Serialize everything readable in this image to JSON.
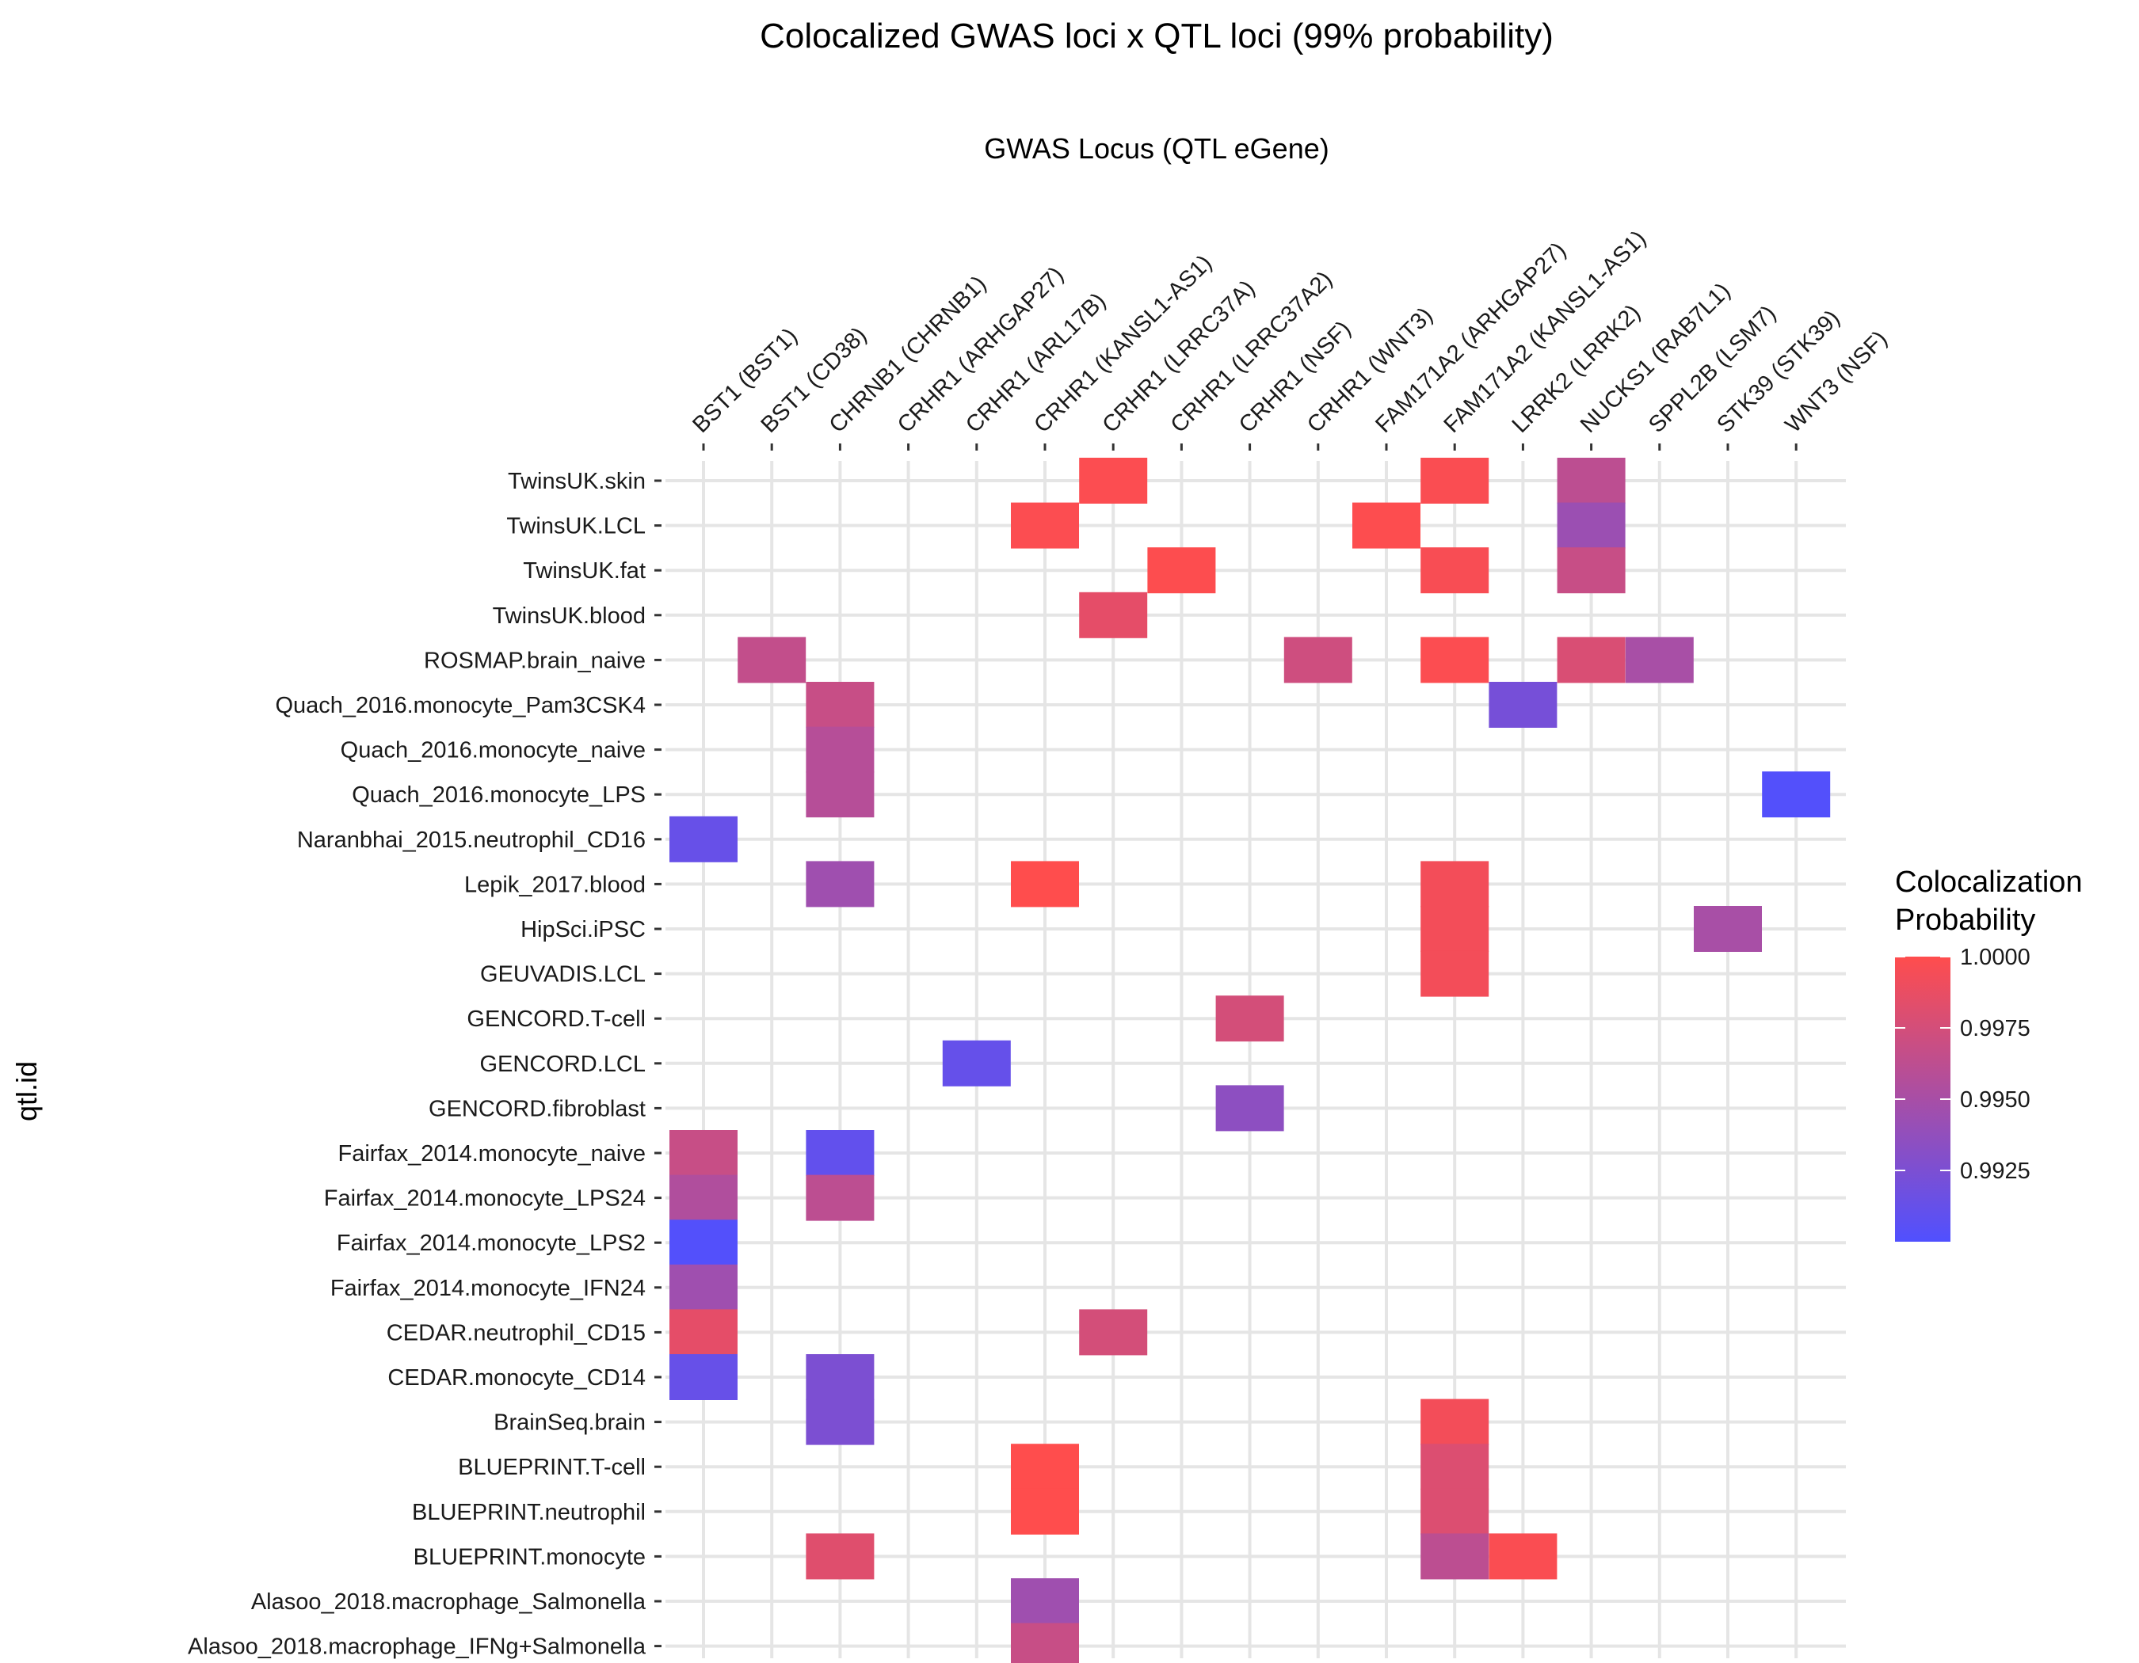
{
  "chart_data": {
    "type": "heatmap",
    "title": "Colocalized GWAS loci x QTL loci (99% probability)",
    "xlabel": "GWAS Locus (QTL eGene)",
    "ylabel": "qtl.id",
    "x_axis_position": "top",
    "x": [
      "BST1 (BST1)",
      "BST1 (CD38)",
      "CHRNB1 (CHRNB1)",
      "CRHR1 (ARHGAP27)",
      "CRHR1 (ARL17B)",
      "CRHR1 (KANSL1-AS1)",
      "CRHR1 (LRRC37A)",
      "CRHR1 (LRRC37A2)",
      "CRHR1 (NSF)",
      "CRHR1 (WNT3)",
      "FAM171A2 (ARHGAP27)",
      "FAM171A2 (KANSL1-AS1)",
      "LRRK2 (LRRK2)",
      "NUCKS1 (RAB7L1)",
      "SPPL2B (LSM7)",
      "STK39 (STK39)",
      "WNT3 (NSF)"
    ],
    "y": [
      "TwinsUK.skin",
      "TwinsUK.LCL",
      "TwinsUK.fat",
      "TwinsUK.blood",
      "ROSMAP.brain_naive",
      "Quach_2016.monocyte_Pam3CSK4",
      "Quach_2016.monocyte_naive",
      "Quach_2016.monocyte_LPS",
      "Naranbhai_2015.neutrophil_CD16",
      "Lepik_2017.blood",
      "HipSci.iPSC",
      "GEUVADIS.LCL",
      "GENCORD.T-cell",
      "GENCORD.LCL",
      "GENCORD.fibroblast",
      "Fairfax_2014.monocyte_naive",
      "Fairfax_2014.monocyte_LPS24",
      "Fairfax_2014.monocyte_LPS2",
      "Fairfax_2014.monocyte_IFN24",
      "CEDAR.neutrophil_CD15",
      "CEDAR.monocyte_CD14",
      "BrainSeq.brain",
      "BLUEPRINT.T-cell",
      "BLUEPRINT.neutrophil",
      "BLUEPRINT.monocyte",
      "Alasoo_2018.macrophage_Salmonella",
      "Alasoo_2018.macrophage_IFNg+Salmonella"
    ],
    "cells": [
      {
        "x": "CRHR1 (LRRC37A)",
        "y": "TwinsUK.skin",
        "value": 0.9998
      },
      {
        "x": "FAM171A2 (KANSL1-AS1)",
        "y": "TwinsUK.skin",
        "value": 0.9997
      },
      {
        "x": "NUCKS1 (RAB7L1)",
        "y": "TwinsUK.skin",
        "value": 0.9962
      },
      {
        "x": "CRHR1 (KANSL1-AS1)",
        "y": "TwinsUK.LCL",
        "value": 0.9998
      },
      {
        "x": "FAM171A2 (ARHGAP27)",
        "y": "TwinsUK.LCL",
        "value": 0.9999
      },
      {
        "x": "NUCKS1 (RAB7L1)",
        "y": "TwinsUK.LCL",
        "value": 0.9943
      },
      {
        "x": "CRHR1 (LRRC37A2)",
        "y": "TwinsUK.fat",
        "value": 0.9999
      },
      {
        "x": "FAM171A2 (KANSL1-AS1)",
        "y": "TwinsUK.fat",
        "value": 0.9996
      },
      {
        "x": "NUCKS1 (RAB7L1)",
        "y": "TwinsUK.fat",
        "value": 0.9968
      },
      {
        "x": "CRHR1 (LRRC37A)",
        "y": "TwinsUK.blood",
        "value": 0.9985
      },
      {
        "x": "BST1 (CD38)",
        "y": "ROSMAP.brain_naive",
        "value": 0.9965
      },
      {
        "x": "CRHR1 (WNT3)",
        "y": "ROSMAP.brain_naive",
        "value": 0.9972
      },
      {
        "x": "FAM171A2 (KANSL1-AS1)",
        "y": "ROSMAP.brain_naive",
        "value": 0.9998
      },
      {
        "x": "NUCKS1 (RAB7L1)",
        "y": "ROSMAP.brain_naive",
        "value": 0.9978
      },
      {
        "x": "SPPL2B (LSM7)",
        "y": "ROSMAP.brain_naive",
        "value": 0.995
      },
      {
        "x": "CHRNB1 (CHRNB1)",
        "y": "Quach_2016.monocyte_Pam3CSK4",
        "value": 0.9968
      },
      {
        "x": "LRRK2 (LRRK2)",
        "y": "Quach_2016.monocyte_Pam3CSK4",
        "value": 0.9922
      },
      {
        "x": "CHRNB1 (CHRNB1)",
        "y": "Quach_2016.monocyte_naive",
        "value": 0.9958
      },
      {
        "x": "CHRNB1 (CHRNB1)",
        "y": "Quach_2016.monocyte_LPS",
        "value": 0.9958
      },
      {
        "x": "WNT3 (NSF)",
        "y": "Quach_2016.monocyte_LPS",
        "value": 0.9902
      },
      {
        "x": "BST1 (BST1)",
        "y": "Naranbhai_2015.neutrophil_CD16",
        "value": 0.9913
      },
      {
        "x": "CHRNB1 (CHRNB1)",
        "y": "Lepik_2017.blood",
        "value": 0.9945
      },
      {
        "x": "CRHR1 (KANSL1-AS1)",
        "y": "Lepik_2017.blood",
        "value": 1.0
      },
      {
        "x": "FAM171A2 (KANSL1-AS1)",
        "y": "Lepik_2017.blood",
        "value": 0.9993
      },
      {
        "x": "STK39 (STK39)",
        "y": "HipSci.iPSC",
        "value": 0.995
      },
      {
        "x": "FAM171A2 (KANSL1-AS1)",
        "y": "HipSci.iPSC",
        "value": 0.9993
      },
      {
        "x": "FAM171A2 (KANSL1-AS1)",
        "y": "GEUVADIS.LCL",
        "value": 0.9993
      },
      {
        "x": "CRHR1 (NSF)",
        "y": "GENCORD.T-cell",
        "value": 0.9975
      },
      {
        "x": "CRHR1 (ARL17B)",
        "y": "GENCORD.LCL",
        "value": 0.9912
      },
      {
        "x": "CRHR1 (NSF)",
        "y": "GENCORD.fibroblast",
        "value": 0.9935
      },
      {
        "x": "BST1 (BST1)",
        "y": "Fairfax_2014.monocyte_naive",
        "value": 0.9968
      },
      {
        "x": "CHRNB1 (CHRNB1)",
        "y": "Fairfax_2014.monocyte_naive",
        "value": 0.991
      },
      {
        "x": "BST1 (BST1)",
        "y": "Fairfax_2014.monocyte_LPS24",
        "value": 0.9955
      },
      {
        "x": "CHRNB1 (CHRNB1)",
        "y": "Fairfax_2014.monocyte_LPS24",
        "value": 0.9962
      },
      {
        "x": "BST1 (BST1)",
        "y": "Fairfax_2014.monocyte_LPS2",
        "value": 0.9902
      },
      {
        "x": "BST1 (BST1)",
        "y": "Fairfax_2014.monocyte_IFN24",
        "value": 0.9945
      },
      {
        "x": "BST1 (BST1)",
        "y": "CEDAR.neutrophil_CD15",
        "value": 0.9985
      },
      {
        "x": "CRHR1 (LRRC37A)",
        "y": "CEDAR.neutrophil_CD15",
        "value": 0.9975
      },
      {
        "x": "BST1 (BST1)",
        "y": "CEDAR.monocyte_CD14",
        "value": 0.9913
      },
      {
        "x": "CHRNB1 (CHRNB1)",
        "y": "CEDAR.monocyte_CD14",
        "value": 0.9925
      },
      {
        "x": "CHRNB1 (CHRNB1)",
        "y": "BrainSeq.brain",
        "value": 0.9925
      },
      {
        "x": "FAM171A2 (KANSL1-AS1)",
        "y": "BrainSeq.brain",
        "value": 0.9993
      },
      {
        "x": "CRHR1 (KANSL1-AS1)",
        "y": "BLUEPRINT.T-cell",
        "value": 1.0
      },
      {
        "x": "FAM171A2 (KANSL1-AS1)",
        "y": "BLUEPRINT.T-cell",
        "value": 0.998
      },
      {
        "x": "CRHR1 (KANSL1-AS1)",
        "y": "BLUEPRINT.neutrophil",
        "value": 1.0
      },
      {
        "x": "FAM171A2 (KANSL1-AS1)",
        "y": "BLUEPRINT.neutrophil",
        "value": 0.998
      },
      {
        "x": "CHRNB1 (CHRNB1)",
        "y": "BLUEPRINT.monocyte",
        "value": 0.9982
      },
      {
        "x": "FAM171A2 (KANSL1-AS1)",
        "y": "BLUEPRINT.monocyte",
        "value": 0.9962
      },
      {
        "x": "LRRK2 (LRRK2)",
        "y": "BLUEPRINT.monocyte",
        "value": 0.9997
      },
      {
        "x": "CRHR1 (KANSL1-AS1)",
        "y": "Alasoo_2018.macrophage_Salmonella",
        "value": 0.9945
      },
      {
        "x": "CRHR1 (KANSL1-AS1)",
        "y": "Alasoo_2018.macrophage_IFNg+Salmonella",
        "value": 0.9968
      }
    ],
    "legend": {
      "title_lines": [
        "Colocalization",
        "Probability"
      ],
      "ticks": [
        {
          "value": 1.0,
          "label": "1.0000"
        },
        {
          "value": 0.9975,
          "label": "0.9975"
        },
        {
          "value": 0.995,
          "label": "0.9950"
        },
        {
          "value": 0.9925,
          "label": "0.9925"
        }
      ],
      "min": 0.99,
      "max": 1.0,
      "low_color": "#5050ff",
      "high_color": "#ff4d4d",
      "placement": "right"
    },
    "grid": true
  }
}
